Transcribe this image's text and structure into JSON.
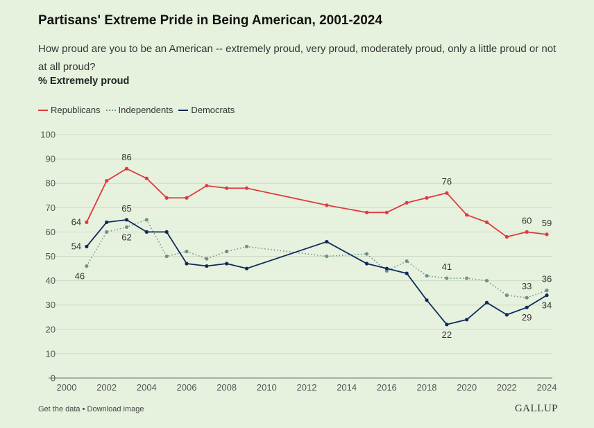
{
  "header": {
    "title": "Partisans' Extreme Pride in Being American, 2001-2024",
    "subtitle": "How proud are you to be an American -- extremely proud, very proud, moderately proud, only a little proud or not at all proud?",
    "measure": "% Extremely proud"
  },
  "footer": {
    "get_data": "Get the data",
    "separator": " • ",
    "download": "Download image",
    "brand": "GALLUP"
  },
  "chart_data": {
    "type": "line",
    "xlim": [
      2000,
      2024
    ],
    "ylim": [
      0,
      100
    ],
    "x_ticks": [
      2000,
      2002,
      2004,
      2006,
      2008,
      2010,
      2012,
      2014,
      2016,
      2018,
      2020,
      2022,
      2024
    ],
    "y_ticks": [
      0,
      10,
      20,
      30,
      40,
      50,
      60,
      70,
      80,
      90,
      100
    ],
    "grid": "horizontal",
    "legend_position": "top-left",
    "series": [
      {
        "name": "Republicans",
        "color": "#e03a3e",
        "style": "solid",
        "x": [
          2001,
          2002,
          2003,
          2004,
          2005,
          2006,
          2007,
          2008,
          2009,
          2013,
          2015,
          2016,
          2017,
          2018,
          2019,
          2020,
          2021,
          2022,
          2023,
          2024
        ],
        "values": [
          64,
          81,
          86,
          82,
          74,
          74,
          79,
          78,
          78,
          71,
          68,
          68,
          72,
          74,
          76,
          67,
          64,
          58,
          60,
          59
        ],
        "labels": [
          {
            "x": 2001,
            "y": 64,
            "text": "64",
            "pos": "left"
          },
          {
            "x": 2003,
            "y": 86,
            "text": "86",
            "pos": "above"
          },
          {
            "x": 2019,
            "y": 76,
            "text": "76",
            "pos": "above"
          },
          {
            "x": 2023,
            "y": 60,
            "text": "60",
            "pos": "above"
          },
          {
            "x": 2024,
            "y": 59,
            "text": "59",
            "pos": "above"
          }
        ]
      },
      {
        "name": "Independents",
        "color": "#6f9287",
        "style": "dotted",
        "x": [
          2001,
          2002,
          2003,
          2004,
          2005,
          2006,
          2007,
          2008,
          2009,
          2013,
          2015,
          2016,
          2017,
          2018,
          2019,
          2020,
          2021,
          2022,
          2023,
          2024
        ],
        "values": [
          46,
          60,
          62,
          65,
          50,
          52,
          49,
          52,
          54,
          50,
          51,
          44,
          48,
          42,
          41,
          41,
          40,
          34,
          33,
          36
        ],
        "labels": [
          {
            "x": 2001,
            "y": 46,
            "text": "46",
            "pos": "below-left"
          },
          {
            "x": 2003,
            "y": 62,
            "text": "62",
            "pos": "below"
          },
          {
            "x": 2019,
            "y": 41,
            "text": "41",
            "pos": "above"
          },
          {
            "x": 2023,
            "y": 33,
            "text": "33",
            "pos": "above"
          },
          {
            "x": 2024,
            "y": 36,
            "text": "36",
            "pos": "above"
          }
        ]
      },
      {
        "name": "Democrats",
        "color": "#0f2a5c",
        "style": "solid",
        "x": [
          2001,
          2002,
          2003,
          2004,
          2005,
          2006,
          2007,
          2008,
          2009,
          2013,
          2015,
          2016,
          2017,
          2018,
          2019,
          2020,
          2021,
          2022,
          2023,
          2024
        ],
        "values": [
          54,
          64,
          65,
          60,
          60,
          47,
          46,
          47,
          45,
          56,
          47,
          45,
          43,
          32,
          22,
          24,
          31,
          26,
          29,
          34
        ],
        "labels": [
          {
            "x": 2001,
            "y": 54,
            "text": "54",
            "pos": "left"
          },
          {
            "x": 2003,
            "y": 65,
            "text": "65",
            "pos": "above"
          },
          {
            "x": 2019,
            "y": 22,
            "text": "22",
            "pos": "below"
          },
          {
            "x": 2023,
            "y": 29,
            "text": "29",
            "pos": "below"
          },
          {
            "x": 2024,
            "y": 34,
            "text": "34",
            "pos": "below"
          }
        ]
      }
    ]
  }
}
